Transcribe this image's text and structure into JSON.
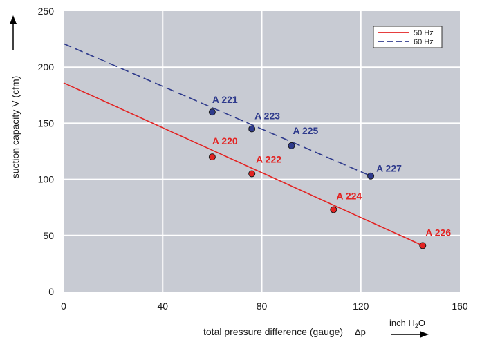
{
  "chart_data": {
    "type": "line",
    "xlabel": "total pressure difference (gauge)",
    "xsymbol": "Δp",
    "xunit_main": "inch H",
    "xunit_sub": "2",
    "xunit_end": "O",
    "ylabel": "suction capacity V (cfm)",
    "xlim": [
      0,
      160
    ],
    "ylim": [
      0,
      250
    ],
    "xticks": [
      0,
      40,
      80,
      120,
      160
    ],
    "yticks": [
      0,
      50,
      100,
      150,
      200,
      250
    ],
    "grid": true,
    "legend_position": "top-right",
    "plot_background": "#c8cbd3",
    "series": [
      {
        "name": "50 Hz",
        "color": "#e32322",
        "dash": "solid",
        "line": [
          [
            0,
            186
          ],
          [
            145,
            41
          ]
        ],
        "points": [
          {
            "label": "A 220",
            "x": 60,
            "y": 120
          },
          {
            "label": "A 222",
            "x": 76,
            "y": 105
          },
          {
            "label": "A 224",
            "x": 109,
            "y": 73
          },
          {
            "label": "A 226",
            "x": 145,
            "y": 41
          }
        ]
      },
      {
        "name": "60 Hz",
        "color": "#2e3a8c",
        "dash": "dashed",
        "line": [
          [
            0,
            221
          ],
          [
            124,
            103
          ]
        ],
        "points": [
          {
            "label": "A 221",
            "x": 60,
            "y": 160
          },
          {
            "label": "A 223",
            "x": 76,
            "y": 145
          },
          {
            "label": "A 225",
            "x": 92,
            "y": 130
          },
          {
            "label": "A 227",
            "x": 124,
            "y": 103
          }
        ]
      }
    ]
  }
}
